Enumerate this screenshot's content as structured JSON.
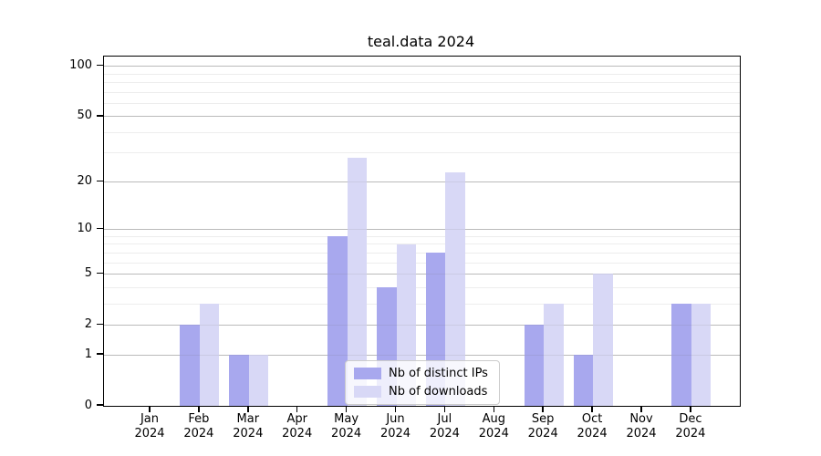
{
  "title": "teal.data 2024",
  "legend": {
    "items": [
      {
        "label": "Nb of distinct IPs",
        "series_key": "ips"
      },
      {
        "label": "Nb of downloads",
        "series_key": "downloads"
      }
    ]
  },
  "colors": {
    "ips_bar": "#a8a8ee",
    "downloads_bar": "#d8d8f6",
    "major_grid": "#c6c6c6",
    "minor_grid": "#ededed",
    "axis": "#000000",
    "legend_border": "#cccccc"
  },
  "chart_data": {
    "type": "bar",
    "title": "teal.data 2024",
    "categories": [
      "Jan",
      "Feb",
      "Mar",
      "Apr",
      "May",
      "Jun",
      "Jul",
      "Aug",
      "Sep",
      "Oct",
      "Nov",
      "Dec"
    ],
    "category_year": "2024",
    "series": [
      {
        "name": "Nb of distinct IPs",
        "values": [
          0,
          2,
          1,
          0,
          9,
          4,
          7,
          0,
          2,
          1,
          0,
          3
        ]
      },
      {
        "name": "Nb of downloads",
        "values": [
          0,
          3,
          1,
          0,
          28,
          8,
          23,
          0,
          3,
          5,
          0,
          3
        ]
      }
    ],
    "y_scale": "log1p",
    "y_major_ticks": [
      0,
      1,
      2,
      5,
      10,
      20,
      50,
      100
    ],
    "y_minor_gridlines": [
      3,
      4,
      6,
      7,
      8,
      9,
      30,
      40,
      60,
      70,
      80,
      90
    ],
    "ylim": [
      0,
      115
    ],
    "grid": true,
    "legend_position": "lower center"
  }
}
